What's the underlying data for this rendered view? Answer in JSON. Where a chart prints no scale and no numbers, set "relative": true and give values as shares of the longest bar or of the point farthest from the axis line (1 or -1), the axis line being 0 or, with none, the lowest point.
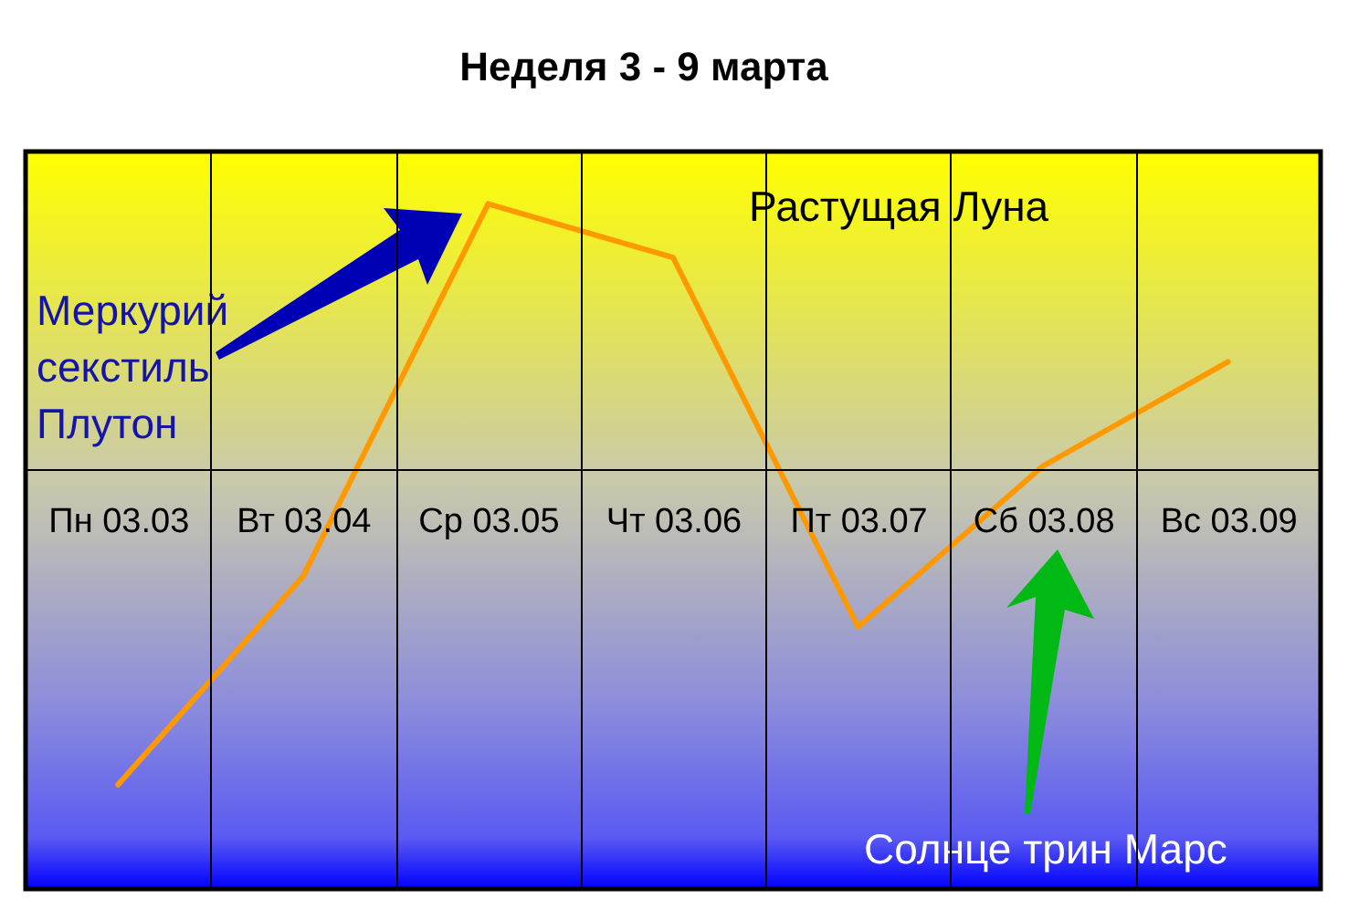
{
  "chart_data": {
    "type": "line",
    "title": "Неделя 3 - 9 марта",
    "categories": [
      "Пн 03.03",
      "Вт 03.04",
      "Ср 03.05",
      "Чт 03.06",
      "Пт 03.07",
      "Сб 03.08",
      "Вс 03.09"
    ],
    "series": [
      {
        "color": "#ff9900",
        "values": [
          -1,
          -0.34,
          0.84,
          0.67,
          -0.5,
          0.01,
          0.34
        ]
      }
    ],
    "relative": true,
    "grid": "x",
    "line_style": "solid",
    "annotations": [
      "Меркурий секстиль Плутон",
      "Растущая Луна",
      "Солнце трин Марс"
    ]
  }
}
